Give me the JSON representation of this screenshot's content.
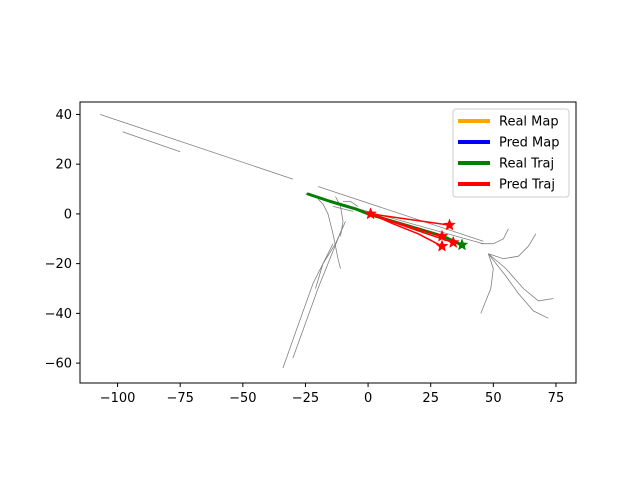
{
  "chart_data": {
    "type": "line",
    "title": "",
    "xlabel": "",
    "ylabel": "",
    "xlim": [
      -115,
      83
    ],
    "ylim": [
      -68,
      45
    ],
    "x_ticks": [
      -100,
      -75,
      -50,
      -25,
      0,
      25,
      50,
      75
    ],
    "y_ticks": [
      40,
      20,
      0,
      -20,
      -40,
      -60
    ],
    "x_tick_labels": [
      "−100",
      "−75",
      "−50",
      "−25",
      "0",
      "25",
      "50",
      "75"
    ],
    "y_tick_labels": [
      "40",
      "20",
      "0",
      "−20",
      "−40",
      "−60"
    ],
    "grid": false,
    "legend_position": "upper right",
    "legend": [
      {
        "label": "Real Map",
        "color": "#ffa500"
      },
      {
        "label": "Pred Map",
        "color": "#0000ff"
      },
      {
        "label": "Real Traj",
        "color": "#008000"
      },
      {
        "label": "Pred Traj",
        "color": "#ff0000"
      }
    ],
    "map_color": "#808080",
    "map_lines": [
      [
        [
          -107,
          40
        ],
        [
          -30,
          14
        ]
      ],
      [
        [
          -98,
          33
        ],
        [
          -75,
          25
        ]
      ],
      [
        [
          -20,
          11
        ],
        [
          46,
          -11
        ]
      ],
      [
        [
          -25,
          8
        ],
        [
          46,
          -12
        ]
      ],
      [
        [
          -20,
          6
        ],
        [
          -18,
          4
        ],
        [
          -16,
          0
        ],
        [
          -14,
          -8
        ],
        [
          -12,
          -18
        ],
        [
          -11,
          -22
        ]
      ],
      [
        [
          -13,
          7
        ],
        [
          -11,
          3
        ],
        [
          -10,
          -3
        ],
        [
          -11,
          -9
        ]
      ],
      [
        [
          -10,
          5
        ],
        [
          -7,
          5
        ],
        [
          -4,
          3
        ]
      ],
      [
        [
          -14,
          3
        ],
        [
          -10,
          2
        ],
        [
          -6,
          1
        ]
      ],
      [
        [
          -9,
          -3
        ],
        [
          -13,
          -12
        ],
        [
          -18,
          -20
        ],
        [
          -21,
          -30
        ]
      ],
      [
        [
          -14,
          -12
        ],
        [
          -22,
          -28
        ],
        [
          -28,
          -45
        ],
        [
          -34,
          -62
        ]
      ],
      [
        [
          -10,
          -5
        ],
        [
          -20,
          -30
        ],
        [
          -30,
          -58
        ]
      ],
      [
        [
          45,
          -12
        ],
        [
          50,
          -12
        ],
        [
          54,
          -10
        ],
        [
          56,
          -6
        ]
      ],
      [
        [
          48,
          -16
        ],
        [
          54,
          -18
        ],
        [
          60,
          -17
        ],
        [
          64,
          -13
        ],
        [
          67,
          -8
        ]
      ],
      [
        [
          48,
          -16
        ],
        [
          55,
          -22
        ],
        [
          62,
          -30
        ],
        [
          68,
          -35
        ],
        [
          74,
          -34
        ]
      ],
      [
        [
          48,
          -16
        ],
        [
          55,
          -25
        ],
        [
          60,
          -32
        ],
        [
          66,
          -39
        ],
        [
          72,
          -42
        ]
      ],
      [
        [
          48,
          -16
        ],
        [
          50,
          -22
        ],
        [
          49,
          -30
        ],
        [
          47,
          -35
        ],
        [
          45,
          -40
        ]
      ]
    ],
    "series": [
      {
        "name": "Real Traj",
        "color": "#008000",
        "width": 3,
        "points": [
          [
            -24,
            8
          ],
          [
            -15,
            5
          ],
          [
            -5,
            2
          ],
          [
            0,
            0
          ],
          [
            10,
            -3
          ],
          [
            20,
            -6
          ],
          [
            30,
            -9
          ],
          [
            37.5,
            -12.5
          ]
        ],
        "endpoint": [
          37.5,
          -12.5
        ]
      },
      {
        "name": "Pred Traj",
        "color": "#ff0000",
        "width": 1.5,
        "points": [
          [
            1,
            0
          ],
          [
            32.5,
            -4.5
          ]
        ],
        "endpoint": [
          32.5,
          -4.5
        ]
      },
      {
        "name": "Pred Traj",
        "color": "#ff0000",
        "width": 1.5,
        "points": [
          [
            1,
            0
          ],
          [
            10,
            -3
          ],
          [
            20,
            -6
          ],
          [
            29.5,
            -9
          ]
        ],
        "endpoint": [
          29.5,
          -9
        ]
      },
      {
        "name": "Pred Traj",
        "color": "#ff0000",
        "width": 1.5,
        "points": [
          [
            1,
            0
          ],
          [
            12,
            -4
          ],
          [
            22,
            -7.5
          ],
          [
            34,
            -11.5
          ]
        ],
        "endpoint": [
          34,
          -11.5
        ]
      },
      {
        "name": "Pred Traj",
        "color": "#ff0000",
        "width": 1.5,
        "points": [
          [
            1,
            0
          ],
          [
            10,
            -4
          ],
          [
            20,
            -8
          ],
          [
            29.5,
            -13
          ]
        ],
        "endpoint": [
          29.5,
          -13
        ]
      }
    ]
  }
}
